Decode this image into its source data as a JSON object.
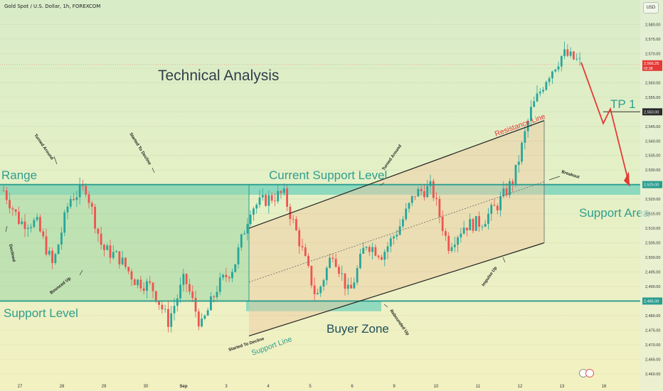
{
  "header": {
    "symbol_title": "Gold Spot / U.S. Dollar, 1h, FOREXCOM"
  },
  "toolbar": {
    "currency_button": "USD"
  },
  "logo_icon": "tradingview-logo-icon",
  "colors": {
    "up": "#26a69a",
    "down": "#ef5350",
    "teal": "#2a9d8f",
    "resistance": "#e53935",
    "range_fill": "#8fd19e",
    "zone_fill": "#45c7b8",
    "channel_fill": "#f0c8a0",
    "support_text": "#2f9e8f"
  },
  "chart_data": {
    "type": "candlestick",
    "x_ticks": [
      "27",
      "28",
      "29",
      "30",
      "Sep",
      "3",
      "4",
      "5",
      "6",
      "9",
      "10",
      "11",
      "12",
      "13",
      "16"
    ],
    "y_ticks": [
      2460,
      2465,
      2470,
      2475,
      2480,
      2485,
      2490,
      2495,
      2500,
      2505,
      2510,
      2515,
      2520,
      2525,
      2530,
      2535,
      2540,
      2545,
      2550,
      2555,
      2560,
      2565,
      2570,
      2575,
      2580
    ],
    "y_range": [
      2458,
      2585
    ],
    "price_labels": [
      {
        "value": 2566.25,
        "text": "2,566.25",
        "subtext": "02:38",
        "kind": "current"
      },
      {
        "value": 2550,
        "text": "2,550.00",
        "kind": "target"
      },
      {
        "value": 2525,
        "text": "2,525.00",
        "kind": "level"
      },
      {
        "value": 2485,
        "text": "2,485.00",
        "kind": "level"
      }
    ],
    "anchors": [
      {
        "date": "Aug 26",
        "price": 2523
      },
      {
        "date": "Aug 27",
        "price": 2512
      },
      {
        "date": "Aug 28",
        "price": 2512
      },
      {
        "date": "Aug 28",
        "price": 2497
      },
      {
        "date": "Aug 29",
        "price": 2520
      },
      {
        "date": "Aug 30",
        "price": 2524
      },
      {
        "date": "Aug 30",
        "price": 2503
      },
      {
        "date": "Sep 2",
        "price": 2500
      },
      {
        "date": "Sep 3",
        "price": 2492
      },
      {
        "date": "Sep 3",
        "price": 2490
      },
      {
        "date": "Sep 3",
        "price": 2478
      },
      {
        "date": "Sep 4",
        "price": 2493
      },
      {
        "date": "Sep 4",
        "price": 2476
      },
      {
        "date": "Sep 4",
        "price": 2490
      },
      {
        "date": "Sep 5",
        "price": 2497
      },
      {
        "date": "Sep 5",
        "price": 2517
      },
      {
        "date": "Sep 6",
        "price": 2520
      },
      {
        "date": "Sep 6",
        "price": 2522
      },
      {
        "date": "Sep 6",
        "price": 2505
      },
      {
        "date": "Sep 6",
        "price": 2486
      },
      {
        "date": "Sep 9",
        "price": 2502
      },
      {
        "date": "Sep 9",
        "price": 2487
      },
      {
        "date": "Sep 9",
        "price": 2505
      },
      {
        "date": "Sep 10",
        "price": 2501
      },
      {
        "date": "Sep 10",
        "price": 2510
      },
      {
        "date": "Sep 11",
        "price": 2522
      },
      {
        "date": "Sep 11",
        "price": 2524
      },
      {
        "date": "Sep 11",
        "price": 2504
      },
      {
        "date": "Sep 11",
        "price": 2511
      },
      {
        "date": "Sep 12",
        "price": 2512
      },
      {
        "date": "Sep 12",
        "price": 2518
      },
      {
        "date": "Sep 12",
        "price": 2527
      },
      {
        "date": "Sep 12",
        "price": 2550
      },
      {
        "date": "Sep 12",
        "price": 2562
      },
      {
        "date": "Sep 13",
        "price": 2570
      },
      {
        "date": "Sep 13",
        "price": 2567
      }
    ],
    "annotations": {
      "title": "Technical Analysis",
      "range": "Range",
      "support_level": "Support Level",
      "current_support_level": "Current Support Level",
      "buyer_zone": "Buyer Zone",
      "support_area": "Support Area",
      "resistance_line": "Resistance Line",
      "support_line": "Support Line",
      "tp1": "TP 1",
      "turned_around_1": "Turned Around",
      "started_to_decline_1": "Started To Decline",
      "declined": "Declined",
      "bounced_up": "Bounced Up",
      "started_to_decline_2": "Started To Decline",
      "turned_around_2": "Turned Around",
      "rebounded_up": "Rebounded Up",
      "impulse_up": "Impulse Up",
      "breakout": "Breakout"
    }
  }
}
